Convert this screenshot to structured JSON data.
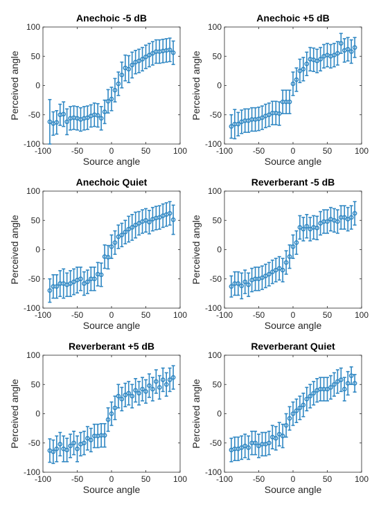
{
  "chart_data": [
    {
      "type": "scatter",
      "title": "Anechoic -5 dB",
      "xlabel": "Source angle",
      "ylabel": "Perceived angle",
      "xlim": [
        -100,
        100
      ],
      "ylim": [
        -100,
        100
      ],
      "xticks": [
        -100,
        -50,
        0,
        50,
        100
      ],
      "yticks": [
        -100,
        -50,
        0,
        50,
        100
      ],
      "grid": false,
      "color": "#2f87c3",
      "x": [
        -90,
        -85,
        -80,
        -75,
        -70,
        -65,
        -60,
        -55,
        -50,
        -45,
        -40,
        -35,
        -30,
        -25,
        -20,
        -15,
        -10,
        -5,
        0,
        5,
        10,
        15,
        20,
        25,
        30,
        35,
        40,
        45,
        50,
        55,
        60,
        65,
        70,
        75,
        80,
        85,
        90
      ],
      "y": [
        -62,
        -65,
        -63,
        -50,
        -49,
        -62,
        -56,
        -55,
        -56,
        -58,
        -56,
        -55,
        -52,
        -50,
        -51,
        -56,
        -45,
        -27,
        -23,
        -8,
        3,
        18,
        30,
        28,
        35,
        40,
        42,
        45,
        49,
        52,
        55,
        58,
        58,
        59,
        60,
        61,
        56
      ],
      "err": [
        38,
        20,
        20,
        18,
        21,
        22,
        20,
        20,
        20,
        20,
        20,
        20,
        19,
        20,
        20,
        20,
        20,
        20,
        20,
        20,
        20,
        22,
        22,
        23,
        22,
        20,
        20,
        20,
        20,
        20,
        20,
        20,
        20,
        20,
        20,
        20,
        20
      ]
    },
    {
      "type": "scatter",
      "title": "Anechoic +5 dB",
      "xlabel": "Source angle",
      "ylabel": "Perceived angle",
      "xlim": [
        -100,
        100
      ],
      "ylim": [
        -100,
        100
      ],
      "xticks": [
        -100,
        -50,
        0,
        50,
        100
      ],
      "yticks": [
        -100,
        -50,
        0,
        50,
        100
      ],
      "grid": false,
      "color": "#2f87c3",
      "x": [
        -90,
        -85,
        -80,
        -75,
        -70,
        -65,
        -60,
        -55,
        -50,
        -45,
        -40,
        -35,
        -30,
        -25,
        -20,
        -15,
        -10,
        -5,
        0,
        5,
        10,
        15,
        20,
        25,
        30,
        35,
        40,
        45,
        50,
        55,
        60,
        65,
        70,
        75,
        80,
        85,
        90
      ],
      "y": [
        -70,
        -66,
        -66,
        -62,
        -60,
        -60,
        -58,
        -58,
        -57,
        -55,
        -52,
        -50,
        -47,
        -47,
        -48,
        -28,
        -28,
        -28,
        3,
        10,
        25,
        28,
        37,
        45,
        44,
        42,
        45,
        50,
        52,
        50,
        52,
        55,
        72,
        60,
        62,
        58,
        65
      ],
      "err": [
        20,
        25,
        20,
        20,
        20,
        20,
        20,
        20,
        20,
        20,
        20,
        20,
        20,
        20,
        20,
        20,
        20,
        20,
        20,
        20,
        20,
        20,
        20,
        20,
        20,
        20,
        20,
        20,
        20,
        20,
        20,
        20,
        17,
        20,
        20,
        20,
        17
      ]
    },
    {
      "type": "scatter",
      "title": "Anechoic Quiet",
      "xlabel": "Source angle",
      "ylabel": "Perceived angle",
      "xlim": [
        -100,
        100
      ],
      "ylim": [
        -100,
        100
      ],
      "xticks": [
        -100,
        -50,
        0,
        50,
        100
      ],
      "yticks": [
        -100,
        -50,
        0,
        50,
        100
      ],
      "grid": false,
      "color": "#2f87c3",
      "x": [
        -90,
        -85,
        -80,
        -75,
        -70,
        -65,
        -60,
        -55,
        -50,
        -45,
        -40,
        -35,
        -30,
        -25,
        -20,
        -15,
        -10,
        -5,
        0,
        5,
        10,
        15,
        20,
        25,
        30,
        35,
        40,
        45,
        50,
        55,
        60,
        65,
        70,
        75,
        80,
        85,
        90
      ],
      "y": [
        -70,
        -63,
        -63,
        -58,
        -58,
        -60,
        -58,
        -55,
        -52,
        -50,
        -58,
        -55,
        -50,
        -50,
        -42,
        -43,
        -12,
        -13,
        5,
        12,
        22,
        25,
        30,
        35,
        38,
        42,
        45,
        48,
        50,
        47,
        52,
        54,
        55,
        58,
        60,
        62,
        51
      ],
      "err": [
        20,
        20,
        20,
        22,
        25,
        20,
        22,
        22,
        22,
        20,
        20,
        20,
        20,
        20,
        20,
        20,
        20,
        20,
        20,
        20,
        20,
        20,
        20,
        22,
        22,
        22,
        20,
        20,
        20,
        20,
        20,
        20,
        20,
        20,
        20,
        20,
        25
      ]
    },
    {
      "type": "scatter",
      "title": "Reverberant -5 dB",
      "xlabel": "Source angle",
      "ylabel": "Perceived angle",
      "xlim": [
        -100,
        100
      ],
      "ylim": [
        -100,
        100
      ],
      "xticks": [
        -100,
        -50,
        0,
        50,
        100
      ],
      "yticks": [
        -100,
        -50,
        0,
        50,
        100
      ],
      "grid": false,
      "color": "#2f87c3",
      "x": [
        -90,
        -85,
        -80,
        -75,
        -70,
        -65,
        -60,
        -55,
        -50,
        -45,
        -40,
        -35,
        -30,
        -25,
        -20,
        -15,
        -10,
        -5,
        0,
        5,
        10,
        15,
        20,
        25,
        30,
        35,
        40,
        45,
        50,
        55,
        60,
        65,
        70,
        75,
        80,
        85,
        90
      ],
      "y": [
        -63,
        -58,
        -58,
        -62,
        -55,
        -60,
        -52,
        -50,
        -50,
        -48,
        -45,
        -42,
        -38,
        -35,
        -32,
        -35,
        -22,
        -12,
        5,
        12,
        38,
        35,
        40,
        35,
        38,
        37,
        45,
        48,
        48,
        52,
        50,
        48,
        55,
        55,
        52,
        55,
        62
      ],
      "err": [
        18,
        20,
        20,
        22,
        20,
        20,
        20,
        20,
        20,
        20,
        20,
        20,
        20,
        20,
        20,
        20,
        20,
        20,
        20,
        20,
        20,
        20,
        20,
        20,
        20,
        20,
        20,
        20,
        20,
        20,
        20,
        20,
        20,
        20,
        20,
        20,
        20
      ]
    },
    {
      "type": "scatter",
      "title": "Reverberant +5 dB",
      "xlabel": "Source angle",
      "ylabel": "Perceived angle",
      "xlim": [
        -100,
        100
      ],
      "ylim": [
        -100,
        100
      ],
      "xticks": [
        -100,
        -50,
        0,
        50,
        100
      ],
      "yticks": [
        -100,
        -50,
        0,
        50,
        100
      ],
      "grid": false,
      "color": "#2f87c3",
      "x": [
        -90,
        -85,
        -80,
        -75,
        -70,
        -65,
        -60,
        -55,
        -50,
        -45,
        -40,
        -35,
        -30,
        -25,
        -20,
        -15,
        -10,
        -5,
        0,
        5,
        10,
        15,
        20,
        25,
        30,
        35,
        40,
        45,
        50,
        55,
        60,
        65,
        70,
        75,
        80,
        85,
        90
      ],
      "y": [
        -63,
        -65,
        -60,
        -52,
        -60,
        -62,
        -55,
        -50,
        -60,
        -52,
        -50,
        -42,
        -45,
        -38,
        -38,
        -37,
        -37,
        -10,
        0,
        10,
        30,
        25,
        32,
        35,
        30,
        40,
        35,
        42,
        38,
        48,
        42,
        55,
        45,
        58,
        50,
        58,
        62
      ],
      "err": [
        20,
        20,
        22,
        20,
        22,
        20,
        20,
        20,
        22,
        20,
        20,
        20,
        20,
        20,
        20,
        20,
        20,
        20,
        20,
        20,
        20,
        20,
        20,
        20,
        20,
        20,
        20,
        20,
        20,
        20,
        20,
        20,
        20,
        20,
        20,
        20,
        20
      ]
    },
    {
      "type": "scatter",
      "title": "Reverberant Quiet",
      "xlabel": "Source angle",
      "ylabel": "Perceived angle",
      "xlim": [
        -100,
        100
      ],
      "ylim": [
        -100,
        100
      ],
      "xticks": [
        -100,
        -50,
        0,
        50,
        100
      ],
      "yticks": [
        -100,
        -50,
        0,
        50,
        100
      ],
      "grid": false,
      "color": "#2f87c3",
      "x": [
        -90,
        -85,
        -80,
        -75,
        -70,
        -65,
        -60,
        -55,
        -50,
        -45,
        -40,
        -35,
        -30,
        -25,
        -20,
        -15,
        -10,
        -5,
        0,
        5,
        10,
        15,
        20,
        25,
        30,
        35,
        40,
        45,
        50,
        55,
        60,
        65,
        70,
        75,
        80,
        85,
        90
      ],
      "y": [
        -62,
        -60,
        -60,
        -58,
        -55,
        -58,
        -50,
        -50,
        -55,
        -52,
        -52,
        -50,
        -40,
        -42,
        -35,
        -38,
        -20,
        -8,
        0,
        5,
        10,
        15,
        25,
        30,
        35,
        40,
        42,
        42,
        42,
        45,
        50,
        55,
        58,
        42,
        52,
        65,
        52
      ],
      "err": [
        20,
        20,
        20,
        20,
        20,
        20,
        20,
        20,
        20,
        20,
        20,
        20,
        20,
        20,
        20,
        20,
        20,
        20,
        20,
        20,
        20,
        20,
        20,
        20,
        20,
        20,
        20,
        20,
        20,
        20,
        20,
        20,
        20,
        20,
        20,
        15,
        15
      ]
    }
  ]
}
